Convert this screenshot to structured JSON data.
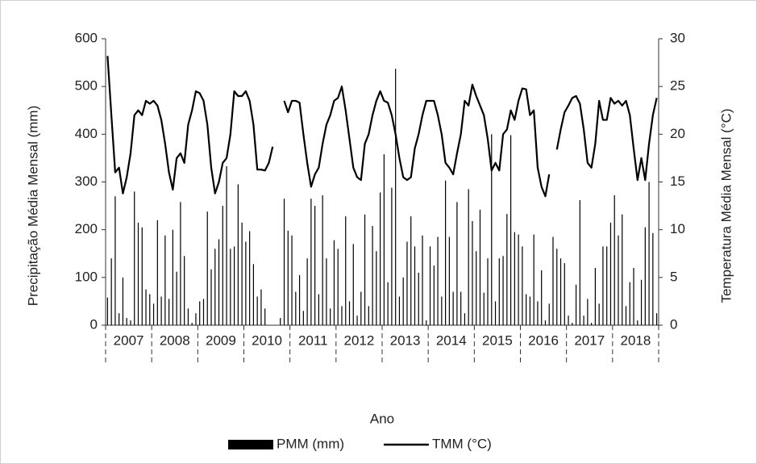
{
  "chart_data": {
    "type": "bar-line",
    "categories": [
      null,
      null,
      null,
      null,
      null,
      "2007",
      null,
      null,
      null,
      null,
      null,
      null,
      null,
      null,
      null,
      null,
      null,
      "2008",
      null,
      null,
      null,
      null,
      null,
      null,
      null,
      null,
      null,
      null,
      null,
      "2009",
      null,
      null,
      null,
      null,
      null,
      null,
      null,
      null,
      null,
      null,
      null,
      "2010",
      null,
      null,
      null,
      null,
      null,
      null,
      null,
      null,
      null,
      null,
      null,
      "2011",
      null,
      null,
      null,
      null,
      null,
      null,
      null,
      null,
      null,
      null,
      null,
      "2012",
      null,
      null,
      null,
      null,
      null,
      null,
      null,
      null,
      null,
      null,
      null,
      "2013",
      null,
      null,
      null,
      null,
      null,
      null,
      null,
      null,
      null,
      null,
      null,
      "2014",
      null,
      null,
      null,
      null,
      null,
      null,
      null,
      null,
      null,
      null,
      null,
      "2015",
      null,
      null,
      null,
      null,
      null,
      null,
      null,
      null,
      null,
      null,
      null,
      "2016",
      null,
      null,
      null,
      null,
      null,
      null,
      null,
      null,
      null,
      null,
      null,
      "2017",
      null,
      null,
      null,
      null,
      null,
      null,
      null,
      null,
      null,
      null,
      null,
      "2018",
      null,
      null,
      null,
      null,
      null,
      null
    ],
    "series": [
      {
        "name": "PMM (mm)",
        "type": "bar",
        "color": "#000000",
        "values": [
          58,
          140,
          270,
          25,
          100,
          15,
          10,
          280,
          215,
          205,
          75,
          65,
          45,
          220,
          60,
          188,
          55,
          200,
          112,
          258,
          145,
          35,
          5,
          25,
          50,
          55,
          238,
          117,
          160,
          180,
          250,
          333,
          160,
          165,
          295,
          215,
          175,
          197,
          128,
          60,
          75,
          35,
          0,
          0,
          0,
          15,
          265,
          198,
          188,
          70,
          105,
          30,
          140,
          265,
          250,
          65,
          272,
          140,
          35,
          178,
          160,
          40,
          228,
          50,
          170,
          20,
          70,
          232,
          40,
          208,
          155,
          278,
          358,
          90,
          288,
          537,
          60,
          100,
          175,
          228,
          165,
          110,
          188,
          10,
          165,
          125,
          185,
          60,
          303,
          185,
          70,
          258,
          70,
          25,
          285,
          218,
          155,
          242,
          68,
          140,
          400,
          50,
          140,
          145,
          233,
          398,
          195,
          190,
          165,
          65,
          60,
          190,
          50,
          115,
          10,
          45,
          185,
          160,
          140,
          130,
          20,
          5,
          85,
          262,
          20,
          55,
          5,
          120,
          45,
          165,
          165,
          215,
          272,
          188,
          232,
          40,
          90,
          120,
          10,
          95,
          205,
          300,
          193,
          25
        ]
      },
      {
        "name": "TMM (°C)",
        "type": "line",
        "axis": "y2",
        "color": "#000000",
        "values": [
          28.2,
          22,
          16,
          16.5,
          13.8,
          15.5,
          18,
          22,
          22.5,
          22,
          23.5,
          23.2,
          23.5,
          23,
          21.5,
          19,
          16,
          14.2,
          17.5,
          18,
          17,
          21,
          22.5,
          24.5,
          24.3,
          23.5,
          21,
          16.5,
          13.8,
          15,
          17,
          17.5,
          20,
          24.5,
          24,
          24,
          24.5,
          23.5,
          21,
          16.3,
          16.3,
          16.2,
          17,
          18.7,
          null,
          null,
          23.5,
          22.3,
          23.5,
          23.5,
          23.3,
          20,
          17,
          14.5,
          15.8,
          16.5,
          19,
          21,
          22,
          23.5,
          23.8,
          25,
          22.5,
          19.5,
          16.5,
          15.5,
          15.2,
          19,
          20,
          22,
          23.5,
          24.5,
          23.5,
          23.3,
          22,
          20,
          17.5,
          15.5,
          15.2,
          15.5,
          18.5,
          20,
          22,
          23.5,
          23.5,
          23.5,
          22,
          20,
          17,
          16.5,
          15.8,
          18,
          20,
          23.5,
          23,
          25.2,
          24,
          23,
          22,
          19.5,
          16.2,
          17,
          16.2,
          20,
          20.5,
          22.5,
          21.5,
          23.5,
          24.8,
          24.7,
          22,
          22.5,
          16.5,
          14.5,
          13.5,
          15.8,
          null,
          18.4,
          20.5,
          22.3,
          23,
          23.8,
          24,
          23.2,
          20.5,
          17,
          16.5,
          19,
          23.5,
          21.5,
          21.5,
          23.8,
          23.2,
          23.5,
          23,
          23.5,
          22,
          18.5,
          15.2,
          17.5,
          15.2,
          19,
          22,
          23.8
        ]
      }
    ],
    "ylim": [
      0,
      600
    ],
    "yticks": [
      0,
      100,
      200,
      300,
      400,
      500,
      600
    ],
    "y2lim": [
      0,
      30
    ],
    "y2ticks": [
      0,
      5,
      10,
      15,
      20,
      25,
      30
    ],
    "ylabel": "Precipitação Média Mensal (mm)",
    "y2label": "Temperatura Média Mensal (°C)",
    "xlabel": "Ano",
    "legend": "bottom"
  }
}
